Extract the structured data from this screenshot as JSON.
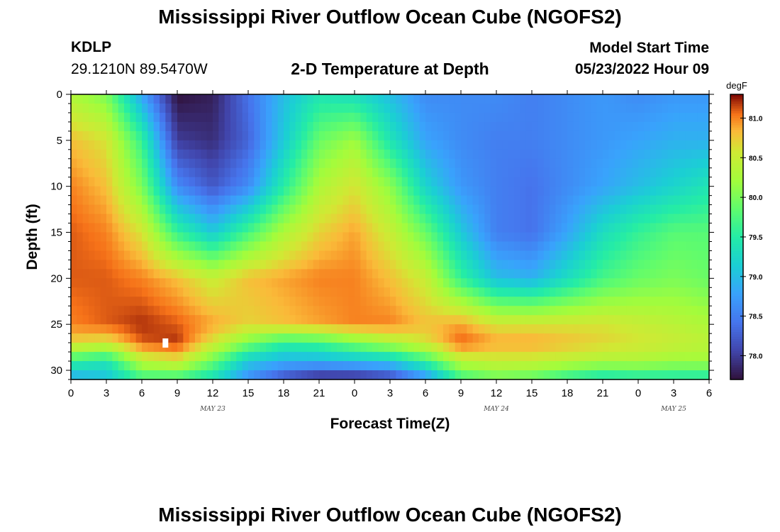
{
  "page": {
    "title_top": "Mississippi River Outflow Ocean Cube (NGOFS2)",
    "title_bottom": "Mississippi River Outflow Ocean Cube (NGOFS2)",
    "station_id": "KDLP",
    "station_coords": "29.1210N  89.5470W",
    "center_title": "2-D Temperature at Depth",
    "model_start_label": "Model Start Time",
    "model_start_value": "05/23/2022 Hour 09"
  },
  "chart_data": {
    "type": "heatmap",
    "title": "2-D Temperature at Depth",
    "xlabel": "Forecast Time(Z)",
    "ylabel": "Depth (ft)",
    "colorbar_label": "degF",
    "x_range_hours": [
      0,
      54
    ],
    "x_tick_labels": [
      "0",
      "3",
      "6",
      "9",
      "12",
      "15",
      "18",
      "21",
      "0",
      "3",
      "6",
      "9",
      "12",
      "15",
      "18",
      "21",
      "0",
      "3",
      "6"
    ],
    "x_date_labels": [
      {
        "label": "MAY 23",
        "hour": 12
      },
      {
        "label": "MAY 24",
        "hour": 36
      },
      {
        "label": "MAY 25",
        "hour": 51
      }
    ],
    "y_range": [
      0,
      31
    ],
    "y_ticks": [
      0,
      5,
      10,
      15,
      20,
      25,
      30
    ],
    "y_reversed": true,
    "value_range": [
      77.7,
      81.3
    ],
    "colorbar_ticks": [
      78.0,
      78.5,
      79.0,
      79.5,
      80.0,
      80.5,
      81.0
    ],
    "grid_x_hours": [
      0,
      3,
      6,
      9,
      12,
      15,
      18,
      21,
      24,
      27,
      30,
      33,
      36,
      39,
      42,
      45,
      48,
      51,
      54
    ],
    "grid_depths": [
      0,
      5,
      10,
      15,
      20,
      25,
      27,
      29,
      31
    ],
    "values": [
      [
        80.3,
        80.0,
        78.8,
        77.7,
        77.8,
        78.4,
        79.0,
        79.4,
        79.3,
        79.0,
        78.6,
        78.6,
        78.6,
        78.5,
        78.6,
        78.7,
        78.6,
        78.7,
        78.7
      ],
      [
        80.8,
        80.6,
        79.6,
        78.0,
        77.9,
        78.3,
        79.1,
        79.9,
        80.2,
        79.4,
        78.8,
        78.6,
        78.5,
        78.5,
        78.6,
        78.7,
        78.8,
        78.9,
        78.9
      ],
      [
        81.0,
        80.8,
        80.0,
        78.6,
        78.2,
        78.6,
        79.5,
        80.3,
        80.6,
        80.1,
        79.2,
        78.7,
        78.5,
        78.4,
        78.6,
        78.8,
        79.0,
        79.2,
        79.4
      ],
      [
        81.1,
        81.0,
        80.6,
        79.6,
        79.1,
        79.7,
        80.3,
        80.7,
        80.9,
        80.5,
        79.9,
        79.1,
        78.5,
        78.4,
        78.8,
        79.3,
        79.6,
        79.8,
        79.8
      ],
      [
        81.1,
        81.1,
        81.0,
        80.8,
        80.5,
        80.8,
        80.9,
        81.0,
        81.0,
        80.8,
        80.5,
        79.6,
        79.0,
        78.9,
        79.3,
        79.7,
        79.9,
        80.0,
        79.9
      ],
      [
        81.0,
        81.1,
        81.2,
        81.1,
        80.9,
        80.7,
        80.8,
        80.9,
        81.0,
        81.0,
        80.8,
        80.9,
        80.6,
        80.6,
        80.6,
        80.6,
        80.5,
        80.4,
        80.3
      ],
      [
        80.7,
        80.6,
        81.1,
        81.2,
        80.6,
        80.0,
        79.6,
        79.7,
        80.0,
        80.3,
        80.6,
        81.1,
        80.9,
        80.9,
        80.8,
        80.7,
        80.6,
        80.5,
        80.4
      ],
      [
        79.6,
        79.4,
        80.4,
        80.6,
        79.9,
        79.1,
        78.9,
        78.9,
        79.0,
        79.1,
        79.6,
        80.4,
        80.5,
        80.5,
        80.4,
        80.3,
        80.3,
        80.2,
        80.2
      ],
      [
        78.8,
        79.0,
        79.6,
        79.6,
        79.3,
        78.6,
        78.1,
        77.8,
        77.8,
        78.0,
        78.6,
        79.6,
        79.9,
        79.8,
        79.5,
        79.3,
        79.4,
        79.4,
        79.4
      ]
    ],
    "marker": {
      "hour": 8,
      "depth": 27
    }
  }
}
